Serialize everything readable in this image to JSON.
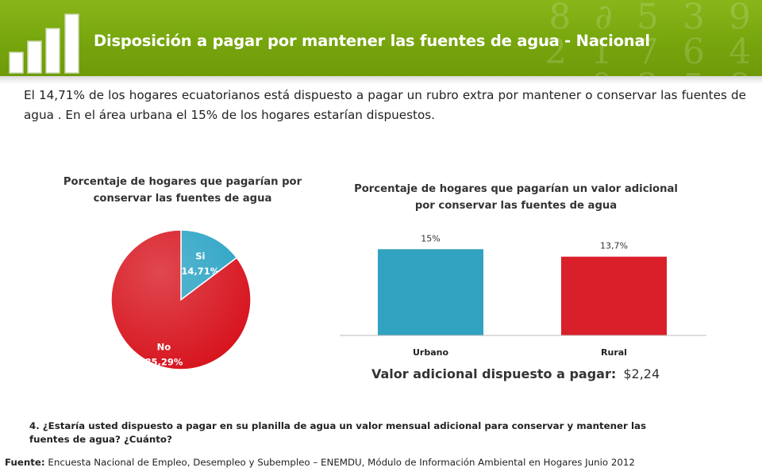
{
  "header": {
    "title": "Disposición a pagar por mantener las fuentes de agua  - Nacional",
    "brand_color": "#7aa60f"
  },
  "intro_text": "El 14,71% de los hogares ecuatorianos está dispuesto a pagar un rubro extra por mantener o conservar las fuentes de agua . En el área urbana el 15% de los hogares estarían dispuestos.",
  "chart_data": [
    {
      "type": "pie",
      "title": "Porcentaje de hogares que pagarían por conservar las fuentes de agua",
      "slices": [
        {
          "label": "Si",
          "value": 14.71,
          "display": "14,71%",
          "color": "#2aa3c4"
        },
        {
          "label": "No",
          "value": 85.29,
          "display": "85,29%",
          "color": "#d7141e"
        }
      ]
    },
    {
      "type": "bar",
      "title": "Porcentaje de hogares que pagarían un valor adicional por conservar las fuentes de agua",
      "categories": [
        "Urbano",
        "Rural"
      ],
      "values": [
        15,
        13.7
      ],
      "labels": [
        "15%",
        "13,7%"
      ],
      "colors": [
        "#31a2c0",
        "#d91f2a"
      ],
      "ylim": [
        0,
        20
      ]
    }
  ],
  "extra_value": {
    "label": "Valor adicional dispuesto a pagar:",
    "value": "$2,24"
  },
  "question": "4. ¿Estaría usted dispuesto a pagar en su planilla de agua un valor mensual adicional para conservar y mantener las fuentes de agua? ¿Cuánto?",
  "source": {
    "label": "Fuente:",
    "text": "Encuesta Nacional de Empleo, Desempleo y Subempleo – ENEMDU, Módulo de Información Ambiental en Hogares Junio 2012"
  }
}
